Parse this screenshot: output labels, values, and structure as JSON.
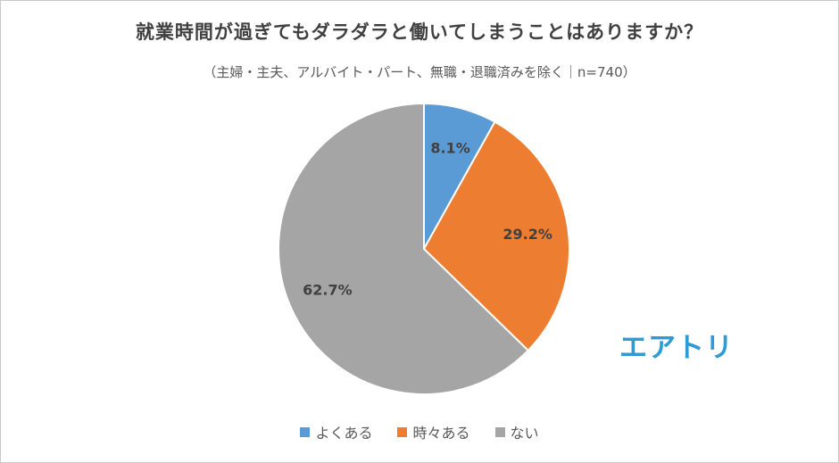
{
  "chart_data": {
    "type": "pie",
    "title": "就業時間が過ぎてもダラダラと働いてしまうことはありますか？",
    "subtitle": "（主婦・主夫、アルバイト・パート、無職・退職済みを除く｜n=740）",
    "categories": [
      "よくある",
      "時々ある",
      "ない"
    ],
    "values": [
      8.1,
      29.2,
      62.7
    ],
    "labels": [
      "8.1%",
      "29.2%",
      "62.7%"
    ],
    "colors": [
      "#5b9bd5",
      "#ed7d31",
      "#a5a5a5"
    ],
    "legend_position": "bottom"
  },
  "logo": {
    "text": "エアトリ",
    "color": "#2e9bd6"
  }
}
